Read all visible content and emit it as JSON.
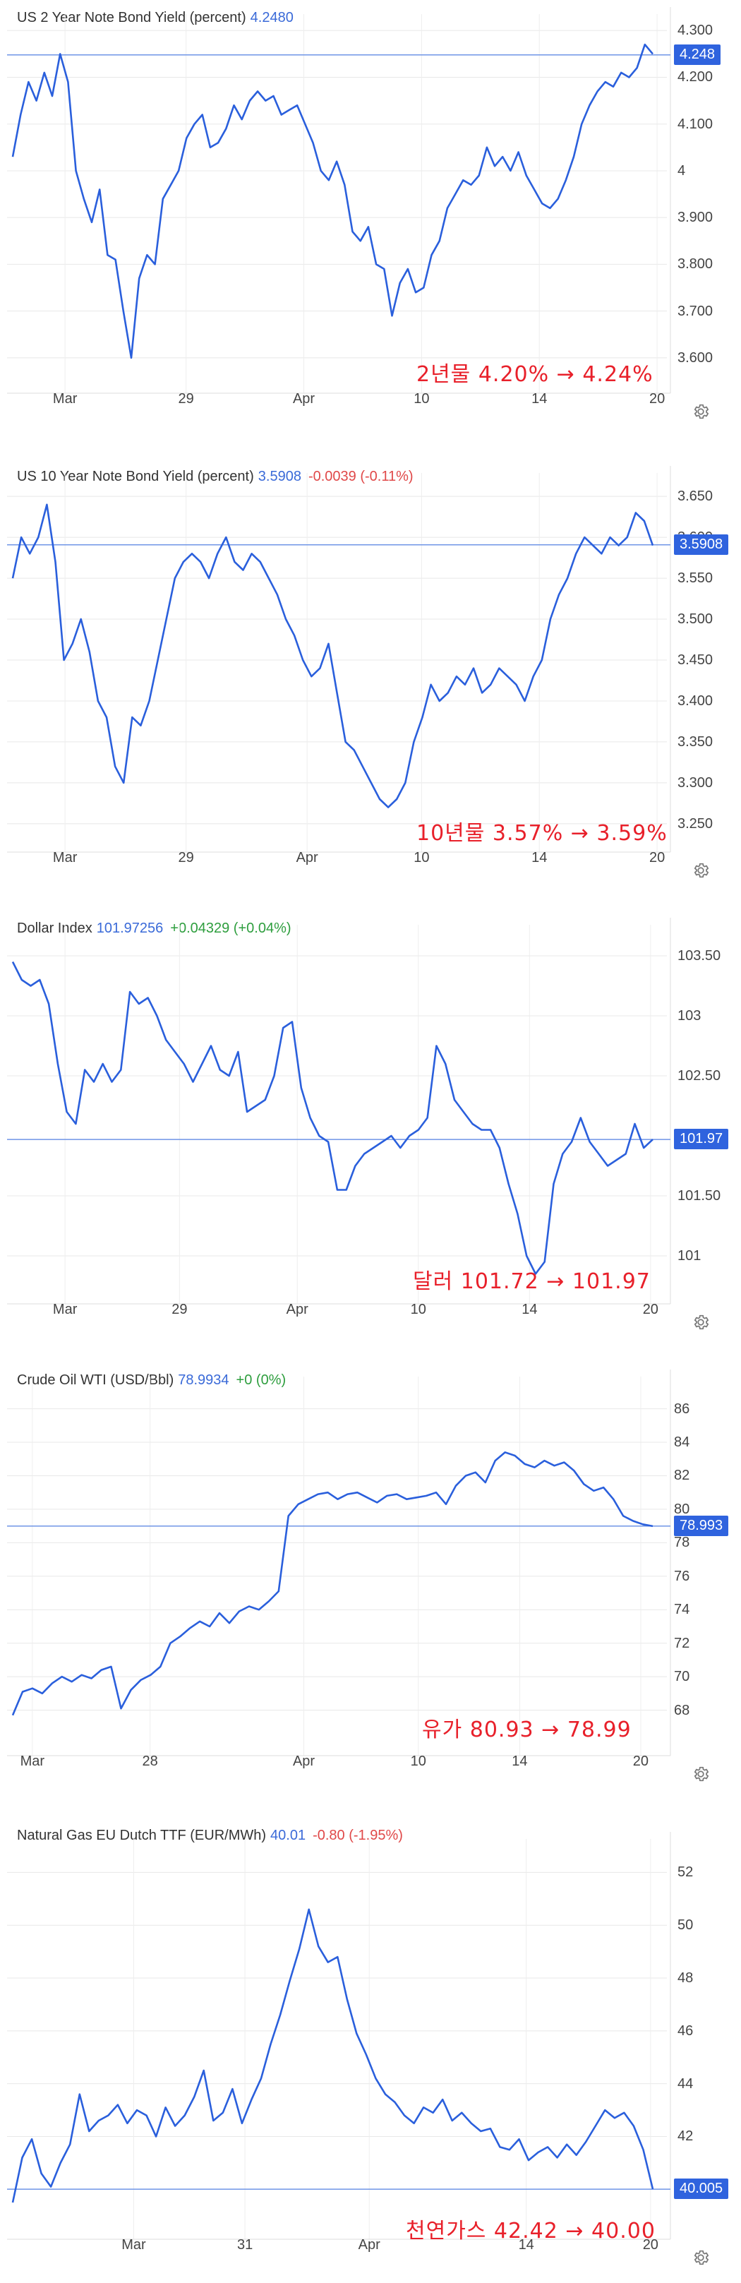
{
  "charts": [
    {
      "title": "US 2 Year Note Bond Yield (percent)",
      "value_text": "4.2480",
      "change_text": "",
      "change_sign": "",
      "current_label": "4.248",
      "annotation": "2년물 4.20% → 4.24%",
      "y_ticks": [
        "4.300",
        "4.200",
        "4.100",
        "4",
        "3.900",
        "3.800",
        "3.700",
        "3.600"
      ],
      "x_ticks": [
        "Mar",
        "29",
        "Apr",
        "10",
        "14",
        "20"
      ],
      "settings_icon": "gear-icon"
    },
    {
      "title": "US 10 Year Note Bond Yield (percent)",
      "value_text": "3.5908",
      "change_text": "-0.0039 (-0.11%)",
      "change_sign": "neg",
      "current_label": "3.5908",
      "annotation": "10년물 3.57% → 3.59%",
      "y_ticks": [
        "3.650",
        "3.600",
        "3.550",
        "3.500",
        "3.450",
        "3.400",
        "3.350",
        "3.300",
        "3.250"
      ],
      "x_ticks": [
        "Mar",
        "29",
        "Apr",
        "10",
        "14",
        "20"
      ],
      "settings_icon": "gear-icon"
    },
    {
      "title": "Dollar Index",
      "value_text": "101.97256",
      "change_text": "+0.04329 (+0.04%)",
      "change_sign": "pos",
      "current_label": "101.97",
      "annotation": "달러 101.72 → 101.97",
      "y_ticks": [
        "103.50",
        "103",
        "102.50",
        "101.50",
        "101"
      ],
      "x_ticks": [
        "Mar",
        "29",
        "Apr",
        "10",
        "14",
        "20"
      ],
      "settings_icon": "gear-icon"
    },
    {
      "title": "Crude Oil WTI (USD/Bbl)",
      "value_text": "78.9934",
      "change_text": "+0 (0%)",
      "change_sign": "pos",
      "current_label": "78.993",
      "annotation": "유가 80.93 → 78.99",
      "y_ticks": [
        "86",
        "84",
        "82",
        "80",
        "78",
        "76",
        "74",
        "72",
        "70",
        "68"
      ],
      "x_ticks": [
        "Mar",
        "28",
        "Apr",
        "10",
        "14",
        "20"
      ],
      "settings_icon": "gear-icon"
    },
    {
      "title": "Natural Gas EU Dutch TTF (EUR/MWh)",
      "value_text": "40.01",
      "change_text": "-0.80 (-1.95%)",
      "change_sign": "neg",
      "current_label": "40.005",
      "annotation": "천연가스 42.42 → 40.00",
      "y_ticks": [
        "52",
        "50",
        "48",
        "46",
        "44",
        "42"
      ],
      "x_ticks": [
        "Mar",
        "31",
        "Apr",
        "14",
        "20"
      ],
      "settings_icon": "gear-icon"
    }
  ],
  "chart_data": [
    {
      "type": "line",
      "title": "US 2 Year Note Bond Yield (percent)",
      "ylim": [
        3.55,
        4.32
      ],
      "current": 4.248,
      "x_tick_positions": [
        0.08,
        0.265,
        0.445,
        0.625,
        0.805,
        0.985
      ],
      "series": [
        {
          "values": [
            4.03,
            4.12,
            4.19,
            4.15,
            4.21,
            4.16,
            4.25,
            4.19,
            4.0,
            3.94,
            3.89,
            3.96,
            3.82,
            3.81,
            3.7,
            3.6,
            3.77,
            3.82,
            3.8,
            3.94,
            3.97,
            4.0,
            4.07,
            4.1,
            4.12,
            4.05,
            4.06,
            4.09,
            4.14,
            4.11,
            4.15,
            4.17,
            4.15,
            4.16,
            4.12,
            4.13,
            4.14,
            4.1,
            4.06,
            4.0,
            3.98,
            4.02,
            3.97,
            3.87,
            3.85,
            3.88,
            3.8,
            3.79,
            3.69,
            3.76,
            3.79,
            3.74,
            3.75,
            3.82,
            3.85,
            3.92,
            3.95,
            3.98,
            3.97,
            3.99,
            4.05,
            4.01,
            4.03,
            4.0,
            4.04,
            3.99,
            3.96,
            3.93,
            3.92,
            3.94,
            3.98,
            4.03,
            4.1,
            4.14,
            4.17,
            4.19,
            4.18,
            4.21,
            4.2,
            4.22,
            4.27,
            4.25
          ]
        }
      ]
    },
    {
      "type": "line",
      "title": "US 10 Year Note Bond Yield (percent)",
      "ylim": [
        3.23,
        3.67
      ],
      "current": 3.5908,
      "x_tick_positions": [
        0.08,
        0.265,
        0.45,
        0.625,
        0.805,
        0.985
      ],
      "series": [
        {
          "values": [
            3.55,
            3.6,
            3.58,
            3.6,
            3.64,
            3.57,
            3.45,
            3.47,
            3.5,
            3.46,
            3.4,
            3.38,
            3.32,
            3.3,
            3.38,
            3.37,
            3.4,
            3.45,
            3.5,
            3.55,
            3.57,
            3.58,
            3.57,
            3.55,
            3.58,
            3.6,
            3.57,
            3.56,
            3.58,
            3.57,
            3.55,
            3.53,
            3.5,
            3.48,
            3.45,
            3.43,
            3.44,
            3.47,
            3.41,
            3.35,
            3.34,
            3.32,
            3.3,
            3.28,
            3.27,
            3.28,
            3.3,
            3.35,
            3.38,
            3.42,
            3.4,
            3.41,
            3.43,
            3.42,
            3.44,
            3.41,
            3.42,
            3.44,
            3.43,
            3.42,
            3.4,
            3.43,
            3.45,
            3.5,
            3.53,
            3.55,
            3.58,
            3.6,
            3.59,
            3.58,
            3.6,
            3.59,
            3.6,
            3.63,
            3.62,
            3.59
          ]
        }
      ]
    },
    {
      "type": "line",
      "title": "Dollar Index",
      "ylim": [
        100.7,
        103.7
      ],
      "current": 101.97,
      "x_tick_positions": [
        0.08,
        0.255,
        0.435,
        0.62,
        0.79,
        0.975
      ],
      "series": [
        {
          "values": [
            103.45,
            103.3,
            103.25,
            103.3,
            103.1,
            102.6,
            102.2,
            102.1,
            102.55,
            102.45,
            102.6,
            102.45,
            102.55,
            103.2,
            103.1,
            103.15,
            103.0,
            102.8,
            102.7,
            102.6,
            102.45,
            102.6,
            102.75,
            102.55,
            102.5,
            102.7,
            102.2,
            102.25,
            102.3,
            102.5,
            102.9,
            102.95,
            102.4,
            102.15,
            102.0,
            101.95,
            101.55,
            101.55,
            101.75,
            101.85,
            101.9,
            101.95,
            102.0,
            101.9,
            102.0,
            102.05,
            102.15,
            102.75,
            102.6,
            102.3,
            102.2,
            102.1,
            102.05,
            102.05,
            101.9,
            101.6,
            101.35,
            101.0,
            100.85,
            100.95,
            101.6,
            101.85,
            101.95,
            102.15,
            101.95,
            101.85,
            101.75,
            101.8,
            101.85,
            102.1,
            101.9,
            101.97
          ]
        }
      ]
    },
    {
      "type": "line",
      "title": "Crude Oil WTI (USD/Bbl)",
      "ylim": [
        66.0,
        87.5
      ],
      "current": 78.993,
      "x_tick_positions": [
        0.03,
        0.21,
        0.445,
        0.62,
        0.775,
        0.96
      ],
      "series": [
        {
          "values": [
            67.7,
            69.1,
            69.3,
            69.0,
            69.6,
            70.0,
            69.7,
            70.1,
            69.9,
            70.4,
            70.6,
            68.1,
            69.2,
            69.8,
            70.1,
            70.6,
            72.0,
            72.4,
            72.9,
            73.3,
            73.0,
            73.8,
            73.2,
            73.9,
            74.2,
            74.0,
            74.5,
            75.1,
            79.6,
            80.3,
            80.6,
            80.9,
            81.0,
            80.6,
            80.9,
            81.0,
            80.7,
            80.4,
            80.8,
            80.9,
            80.6,
            80.7,
            80.8,
            81.0,
            80.3,
            81.4,
            82.0,
            82.2,
            81.6,
            82.9,
            83.4,
            83.2,
            82.7,
            82.5,
            82.9,
            82.6,
            82.8,
            82.3,
            81.5,
            81.1,
            81.3,
            80.6,
            79.6,
            79.3,
            79.1,
            78.99
          ]
        }
      ]
    },
    {
      "type": "line",
      "title": "Natural Gas EU Dutch TTF (EUR/MWh)",
      "ylim": [
        39.5,
        53.0
      ],
      "current": 40.005,
      "x_tick_positions": [
        0.185,
        0.355,
        0.545,
        0.785,
        0.975
      ],
      "series": [
        {
          "values": [
            39.5,
            41.2,
            41.9,
            40.6,
            40.1,
            41.0,
            41.7,
            43.6,
            42.2,
            42.6,
            42.8,
            43.2,
            42.5,
            43.0,
            42.8,
            42.0,
            43.1,
            42.4,
            42.8,
            43.5,
            44.5,
            42.6,
            42.9,
            43.8,
            42.5,
            43.4,
            44.2,
            45.5,
            46.6,
            47.9,
            49.1,
            50.6,
            49.2,
            48.6,
            48.8,
            47.2,
            45.9,
            45.1,
            44.2,
            43.6,
            43.3,
            42.8,
            42.5,
            43.1,
            42.9,
            43.4,
            42.6,
            42.9,
            42.5,
            42.2,
            42.3,
            41.6,
            41.5,
            41.9,
            41.1,
            41.4,
            41.6,
            41.2,
            41.7,
            41.3,
            41.8,
            42.4,
            43.0,
            42.7,
            42.9,
            42.4,
            41.5,
            40.01
          ]
        }
      ]
    }
  ]
}
